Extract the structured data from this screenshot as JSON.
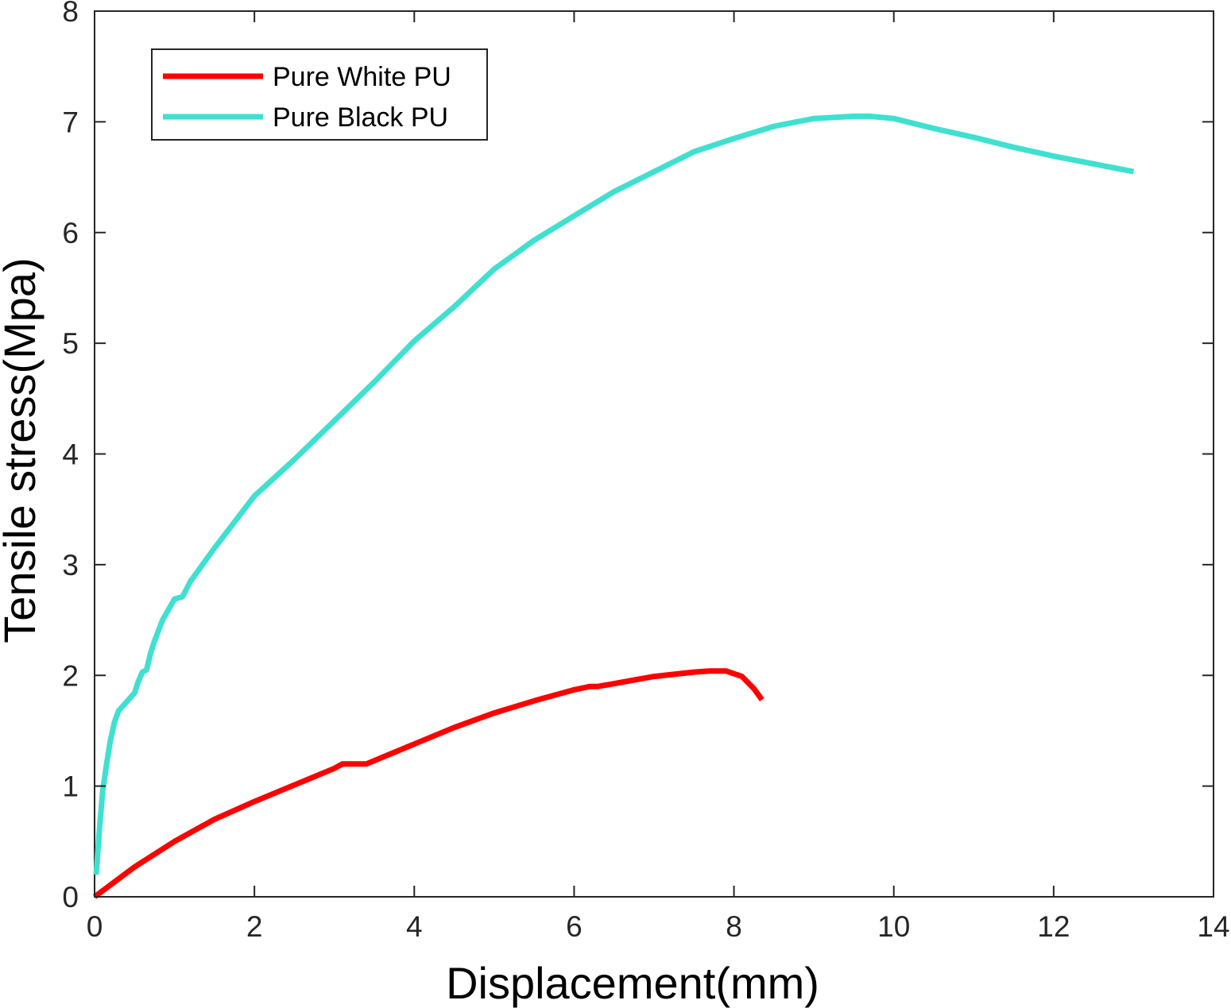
{
  "chart_data": {
    "type": "line",
    "title": "",
    "xlabel": "Displacement(mm)",
    "ylabel": "Tensile stress(Mpa)",
    "xlim": [
      0,
      14
    ],
    "ylim": [
      0,
      8
    ],
    "xticks": [
      0,
      2,
      4,
      6,
      8,
      10,
      12,
      14
    ],
    "yticks": [
      0,
      1,
      2,
      3,
      4,
      5,
      6,
      7,
      8
    ],
    "grid": false,
    "legend_position": "top-left",
    "series": [
      {
        "name": "Pure White PU",
        "color": "#ff0000",
        "x": [
          0,
          0.5,
          1,
          1.5,
          2,
          2.5,
          3,
          3.1,
          3.4,
          3.6,
          4,
          4.5,
          5,
          5.5,
          6,
          6.2,
          6.3,
          7,
          7.5,
          7.7,
          7.9,
          8.1,
          8.25,
          8.35
        ],
        "y": [
          0,
          0.27,
          0.5,
          0.7,
          0.86,
          1.01,
          1.16,
          1.2,
          1.2,
          1.26,
          1.38,
          1.53,
          1.66,
          1.77,
          1.87,
          1.9,
          1.9,
          1.99,
          2.03,
          2.04,
          2.04,
          1.99,
          1.88,
          1.78
        ]
      },
      {
        "name": "Pure Black PU",
        "color": "#40e0d0",
        "x": [
          0.02,
          0.06,
          0.1,
          0.15,
          0.2,
          0.25,
          0.3,
          0.35,
          0.4,
          0.5,
          0.55,
          0.6,
          0.65,
          0.7,
          0.75,
          0.85,
          1,
          1.1,
          1.2,
          1.5,
          2,
          2.5,
          3,
          3.5,
          4,
          4.5,
          5,
          5.5,
          6,
          6.5,
          7,
          7.5,
          8,
          8.5,
          9,
          9.5,
          9.7,
          10,
          10.5,
          11,
          11.5,
          12,
          12.5,
          13
        ],
        "y": [
          0.2,
          0.6,
          0.95,
          1.2,
          1.42,
          1.58,
          1.68,
          1.72,
          1.76,
          1.84,
          1.95,
          2.03,
          2.05,
          2.2,
          2.31,
          2.5,
          2.69,
          2.71,
          2.85,
          3.15,
          3.62,
          3.95,
          4.3,
          4.65,
          5.02,
          5.33,
          5.67,
          5.93,
          6.15,
          6.37,
          6.55,
          6.73,
          6.85,
          6.96,
          7.03,
          7.05,
          7.05,
          7.03,
          6.94,
          6.86,
          6.77,
          6.69,
          6.62,
          6.55
        ]
      }
    ]
  }
}
